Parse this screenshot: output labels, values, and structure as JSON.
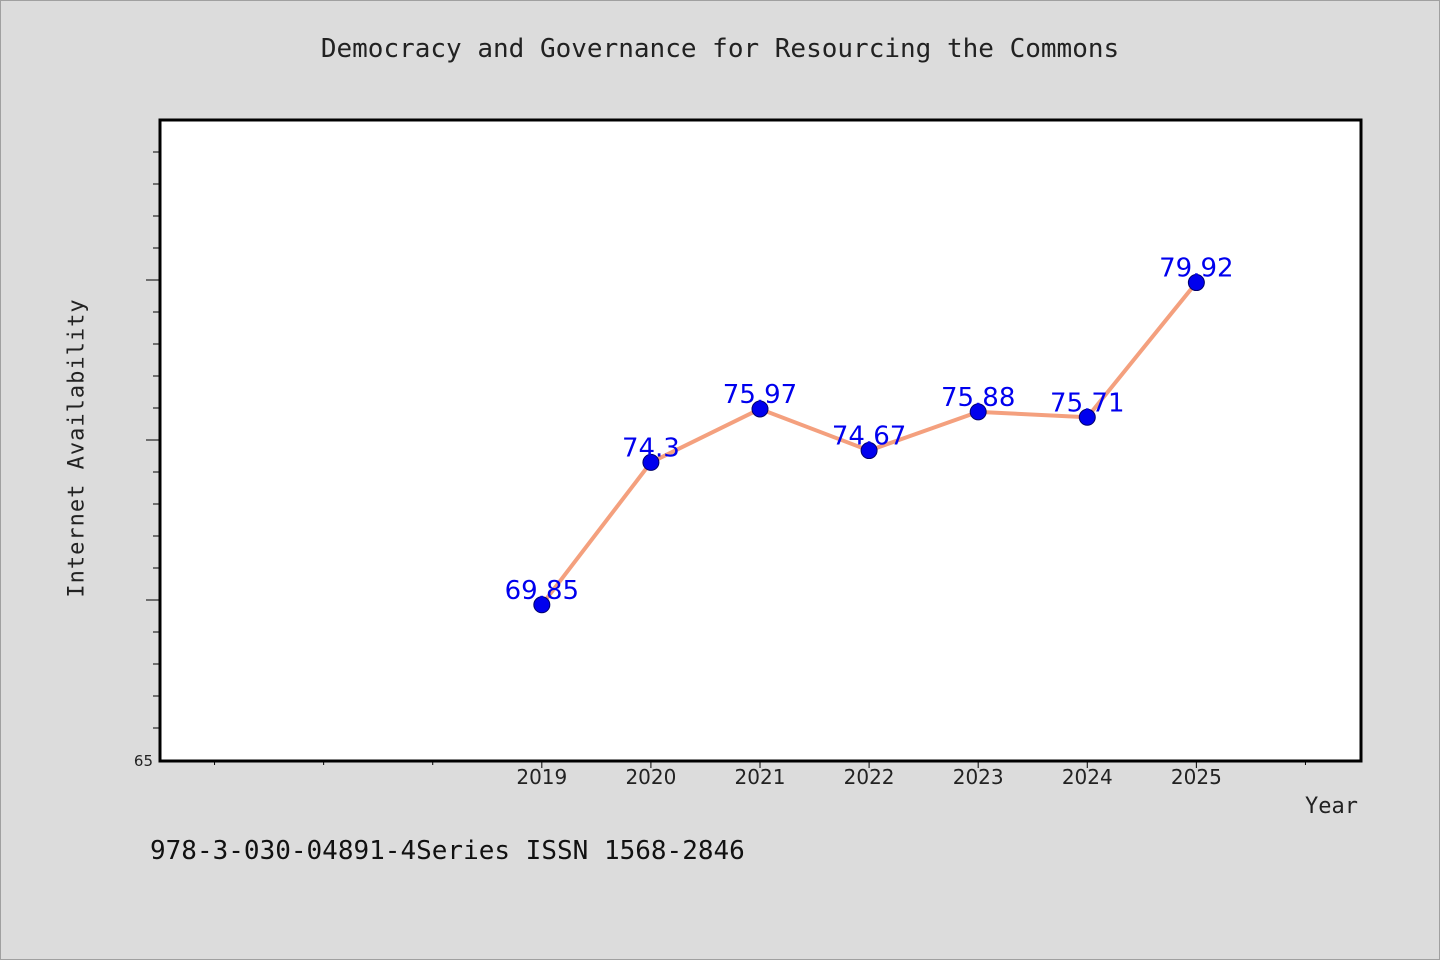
{
  "chart_data": {
    "type": "line",
    "title": "Democracy and Governance for Resourcing the Commons",
    "xlabel": "Year",
    "ylabel": "Internet Availability",
    "categories": [
      "2019",
      "2020",
      "2021",
      "2022",
      "2023",
      "2024",
      "2025"
    ],
    "x_range": [
      2015.5,
      2026.5
    ],
    "ylim": [
      65,
      85
    ],
    "ytick_labels": [
      "65"
    ],
    "series": [
      {
        "values": [
          69.85,
          74.3,
          75.97,
          74.67,
          75.88,
          75.71,
          79.92
        ]
      }
    ],
    "data_labels": [
      "69.85",
      "74.3",
      "75.97",
      "74.67",
      "75.88",
      "75.71",
      "79.92"
    ],
    "line_color": "#f4a07e",
    "marker_color": "#0000ee",
    "label_color": "#0000ee",
    "grid": false,
    "legend": "none"
  },
  "footer": {
    "note": "978-3-030-04891-4Series ISSN 1568-2846"
  }
}
